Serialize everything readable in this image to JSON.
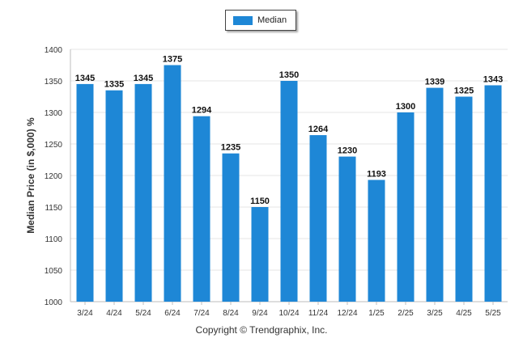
{
  "chart_data": {
    "type": "bar",
    "categories": [
      "3/24",
      "4/24",
      "5/24",
      "6/24",
      "7/24",
      "8/24",
      "9/24",
      "10/24",
      "11/24",
      "12/24",
      "1/25",
      "2/25",
      "3/25",
      "4/25",
      "5/25"
    ],
    "series": [
      {
        "name": "Median",
        "values": [
          1345,
          1335,
          1345,
          1375,
          1294,
          1235,
          1150,
          1350,
          1264,
          1230,
          1193,
          1300,
          1339,
          1325,
          1343
        ]
      }
    ],
    "title": "",
    "xlabel": "",
    "ylabel": "Median Price (in $,000) %",
    "ylim": [
      1000,
      1400
    ],
    "yticks": [
      1000,
      1050,
      1100,
      1150,
      1200,
      1250,
      1300,
      1350,
      1400
    ],
    "grid": true,
    "legend_position": "top-center",
    "bar_color": "#1e87d6"
  },
  "footer": {
    "copyright": "Copyright © Trendgraphix, Inc."
  }
}
